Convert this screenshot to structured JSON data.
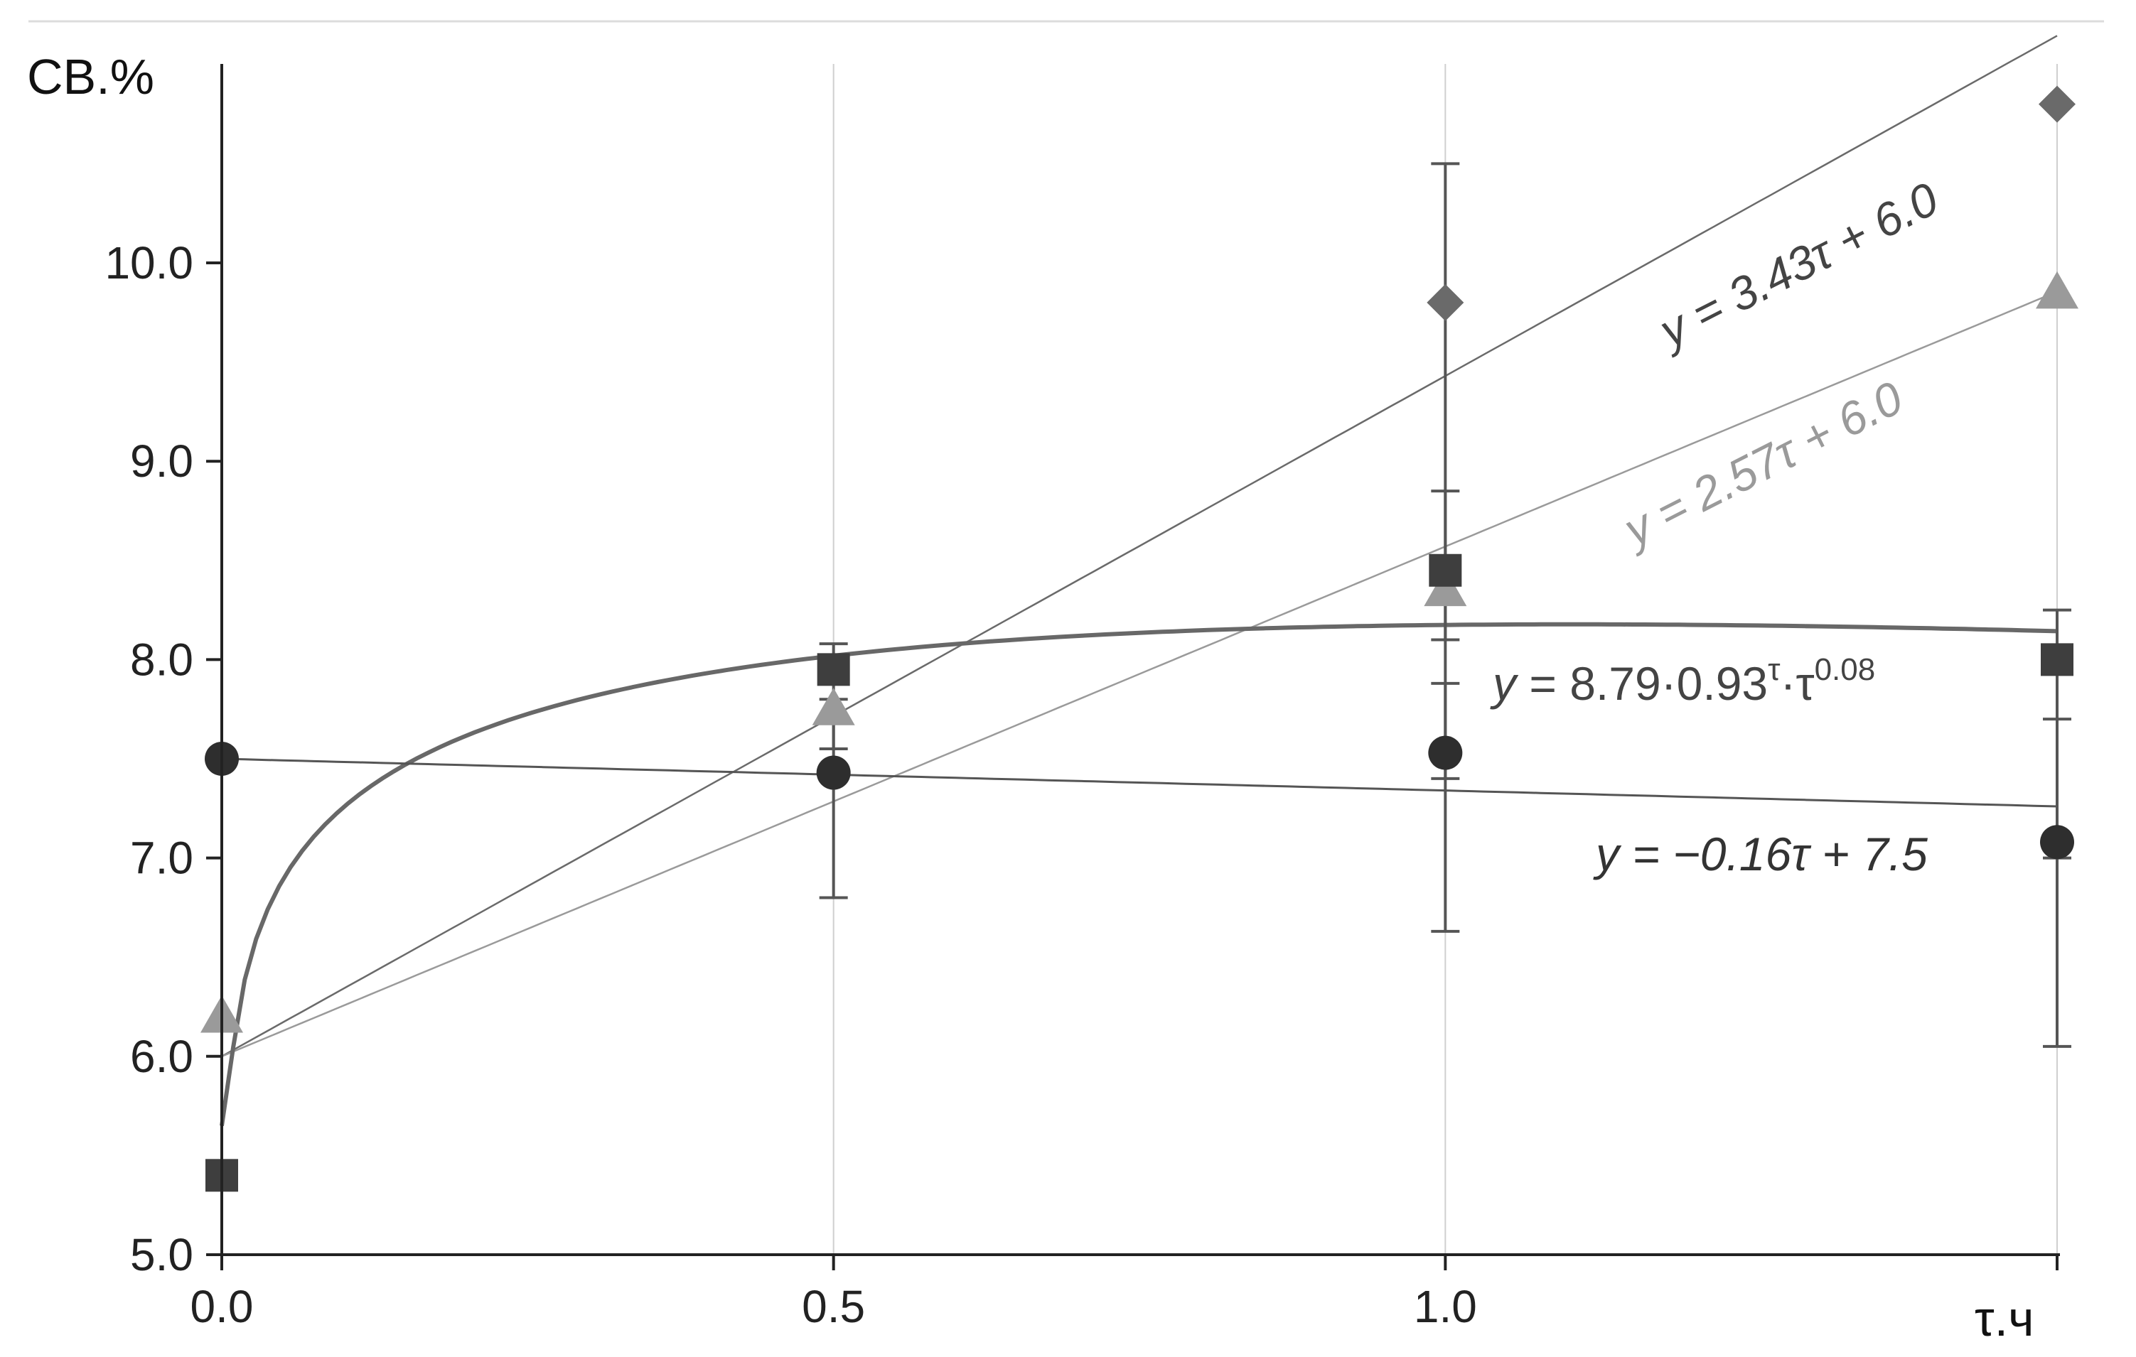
{
  "chart_data": {
    "type": "scatter",
    "title": "",
    "xlabel": "τ.ч",
    "ylabel": "CB.%",
    "xlim": [
      0,
      1.5
    ],
    "ylim": [
      5.0,
      11.0
    ],
    "x_ticks": [
      0.0,
      0.5,
      1.0,
      1.5
    ],
    "x_tick_labels": [
      "0.0",
      "0.5",
      "1.0",
      ""
    ],
    "y_ticks": [
      5.0,
      6.0,
      7.0,
      8.0,
      9.0,
      10.0
    ],
    "y_tick_labels": [
      "5.0",
      "6.0",
      "7.0",
      "8.0",
      "9.0",
      "10.0"
    ],
    "grid": "vertical at x ticks",
    "series": [
      {
        "marker": "diamond",
        "color": "#6a6a6a",
        "x": [
          1.0,
          1.5
        ],
        "y": [
          9.8,
          10.8
        ],
        "errors": [
          {
            "x": 1.0,
            "low": 8.1,
            "high": 10.5
          }
        ]
      },
      {
        "marker": "triangle",
        "color": "#9a9a9a",
        "x": [
          0.0,
          0.5,
          1.0,
          1.5
        ],
        "y": [
          6.2,
          7.75,
          8.35,
          9.85
        ],
        "errors": []
      },
      {
        "marker": "square",
        "color": "#3e3e3e",
        "x": [
          0.0,
          0.5,
          1.0,
          1.5
        ],
        "y": [
          5.4,
          7.95,
          8.45,
          8.0
        ],
        "errors": [
          {
            "x": 0.5,
            "low": 7.55,
            "high": 8.08
          },
          {
            "x": 1.0,
            "low": 7.4,
            "high": 8.85
          },
          {
            "x": 1.5,
            "low": 7.0,
            "high": 8.25
          }
        ]
      },
      {
        "marker": "circle",
        "color": "#2e2e2e",
        "x": [
          0.0,
          0.5,
          1.0,
          1.5
        ],
        "y": [
          7.5,
          7.43,
          7.53,
          7.08
        ],
        "errors": [
          {
            "x": 0.5,
            "low": 6.8,
            "high": 7.8
          },
          {
            "x": 1.0,
            "low": 6.63,
            "high": 7.88
          },
          {
            "x": 1.5,
            "low": 6.05,
            "high": 7.7
          }
        ]
      }
    ],
    "trendlines": [
      {
        "kind": "linear",
        "slope": 3.43,
        "intercept": 6.0,
        "x_range": [
          0.0,
          1.5
        ],
        "color": "#6a6a6a",
        "width": 2.5,
        "label": "y = 3.43τ + 6.0",
        "label_color": "#444444"
      },
      {
        "kind": "linear",
        "slope": 2.57,
        "intercept": 6.0,
        "x_range": [
          0.0,
          1.5
        ],
        "color": "#9a9a9a",
        "width": 2.5,
        "label": "y = 2.57τ + 6.0",
        "label_color": "#9a9a9a"
      },
      {
        "kind": "power_exp",
        "a": 8.79,
        "b": 0.93,
        "c": 0.08,
        "x_range": [
          0.0,
          1.5
        ],
        "color": "#686868",
        "width": 6,
        "label_parts": [
          "y",
          " = 8.79·0.93",
          "τ",
          "·τ",
          "0.08"
        ],
        "label_color": "#444444"
      },
      {
        "kind": "linear",
        "slope": -0.16,
        "intercept": 7.5,
        "x_range": [
          0.0,
          1.5
        ],
        "color": "#555555",
        "width": 3,
        "label": "y = −0.16τ + 7.5",
        "label_color": "#333333"
      }
    ]
  }
}
